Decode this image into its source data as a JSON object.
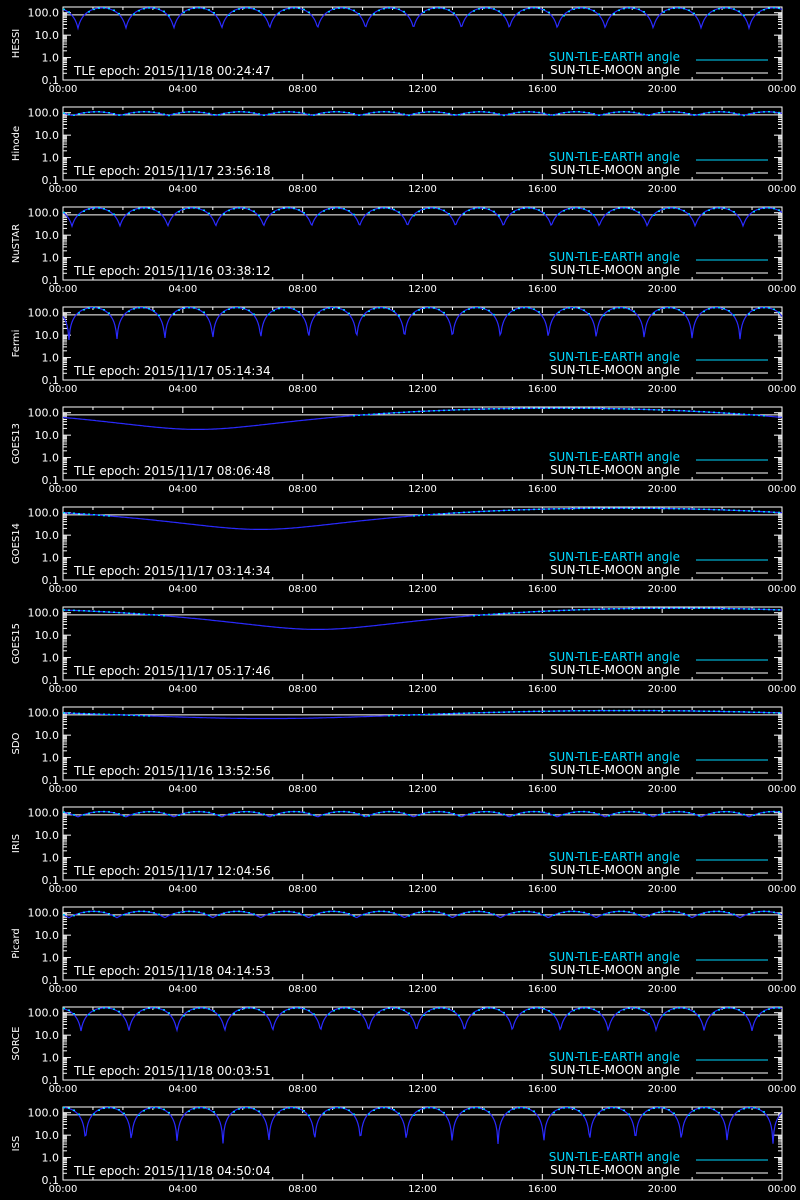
{
  "page": {
    "background": "#000000",
    "foreground": "#ffffff"
  },
  "colors": {
    "earth_angle": "#2a2aff",
    "earth_angle_marks": "#00d8ff",
    "legend_earth": "#00d8ff",
    "legend_moon": "#ffffff",
    "moon_angle_line": "#ffffff"
  },
  "shared": {
    "y_ticks": [
      "100.0",
      "10.0",
      "1.0",
      "0.1"
    ],
    "x_ticks": [
      "00:00",
      "04:00",
      "08:00",
      "12:00",
      "16:00",
      "20:00",
      "00:00"
    ],
    "legend": [
      "SUN-TLE-EARTH angle",
      "SUN-TLE-MOON angle"
    ],
    "epoch_prefix": "TLE epoch: "
  },
  "chart_data": [
    {
      "type": "line",
      "name": "HESSI",
      "epoch": "2015/11/18 00:24:47",
      "yscale": "log",
      "ylim": [
        0.1,
        180
      ],
      "xlim_hours": [
        0,
        24
      ],
      "moon_angle": 80,
      "series": [
        {
          "name": "SUN-TLE-EARTH angle",
          "model": "orbit",
          "period_hours": 1.6,
          "phase_hours": 0.5,
          "min_deg": 20,
          "max_deg": 165
        }
      ]
    },
    {
      "type": "line",
      "name": "Hinode",
      "epoch": "2015/11/17 23:56:18",
      "yscale": "log",
      "ylim": [
        0.1,
        180
      ],
      "xlim_hours": [
        0,
        24
      ],
      "moon_angle": 80,
      "series": [
        {
          "name": "SUN-TLE-EARTH angle",
          "model": "orbit",
          "period_hours": 1.6,
          "phase_hours": 0.3,
          "min_deg": 75,
          "max_deg": 110
        }
      ]
    },
    {
      "type": "line",
      "name": "NuSTAR",
      "epoch": "2015/11/16 03:38:12",
      "yscale": "log",
      "ylim": [
        0.1,
        180
      ],
      "xlim_hours": [
        0,
        24
      ],
      "moon_angle": 80,
      "series": [
        {
          "name": "SUN-TLE-EARTH angle",
          "model": "orbit",
          "period_hours": 1.6,
          "phase_hours": 0.3,
          "min_deg": 25,
          "max_deg": 165
        }
      ]
    },
    {
      "type": "line",
      "name": "Fermi",
      "epoch": "2015/11/17 05:14:34",
      "yscale": "log",
      "ylim": [
        0.1,
        180
      ],
      "xlim_hours": [
        0,
        24
      ],
      "moon_angle": 80,
      "series": [
        {
          "name": "SUN-TLE-EARTH angle",
          "model": "orbit",
          "period_hours": 1.6,
          "phase_hours": 0.2,
          "min_deg": 6,
          "max_deg": 170
        }
      ]
    },
    {
      "type": "line",
      "name": "GOES13",
      "epoch": "2015/11/17 08:06:48",
      "yscale": "log",
      "ylim": [
        0.1,
        180
      ],
      "xlim_hours": [
        0,
        24
      ],
      "moon_angle": 80,
      "series": [
        {
          "name": "SUN-TLE-EARTH angle",
          "model": "geo",
          "min_hour": 4.5,
          "min_deg": 18,
          "max_deg": 160
        }
      ]
    },
    {
      "type": "line",
      "name": "GOES14",
      "epoch": "2015/11/17 03:14:34",
      "yscale": "log",
      "ylim": [
        0.1,
        180
      ],
      "xlim_hours": [
        0,
        24
      ],
      "moon_angle": 80,
      "series": [
        {
          "name": "SUN-TLE-EARTH angle",
          "model": "geo",
          "min_hour": 6.6,
          "min_deg": 18,
          "max_deg": 160
        }
      ]
    },
    {
      "type": "line",
      "name": "GOES15",
      "epoch": "2015/11/17 05:17:46",
      "yscale": "log",
      "ylim": [
        0.1,
        180
      ],
      "xlim_hours": [
        0,
        24
      ],
      "moon_angle": 80,
      "series": [
        {
          "name": "SUN-TLE-EARTH angle",
          "model": "geo",
          "min_hour": 8.5,
          "min_deg": 18,
          "max_deg": 160
        }
      ]
    },
    {
      "type": "line",
      "name": "SDO",
      "epoch": "2015/11/16 13:52:56",
      "yscale": "log",
      "ylim": [
        0.1,
        180
      ],
      "xlim_hours": [
        0,
        24
      ],
      "moon_angle": 80,
      "series": [
        {
          "name": "SUN-TLE-EARTH angle",
          "model": "geo",
          "min_hour": 6.8,
          "min_deg": 55,
          "max_deg": 125
        }
      ]
    },
    {
      "type": "line",
      "name": "IRIS",
      "epoch": "2015/11/17 12:04:56",
      "yscale": "log",
      "ylim": [
        0.1,
        180
      ],
      "xlim_hours": [
        0,
        24
      ],
      "moon_angle": 80,
      "series": [
        {
          "name": "SUN-TLE-EARTH angle",
          "model": "orbit",
          "period_hours": 1.6,
          "phase_hours": 0.5,
          "min_deg": 65,
          "max_deg": 112
        }
      ]
    },
    {
      "type": "line",
      "name": "Picard",
      "epoch": "2015/11/18 04:14:53",
      "yscale": "log",
      "ylim": [
        0.1,
        180
      ],
      "xlim_hours": [
        0,
        24
      ],
      "moon_angle": 80,
      "series": [
        {
          "name": "SUN-TLE-EARTH angle",
          "model": "orbit",
          "period_hours": 1.6,
          "phase_hours": 0.2,
          "min_deg": 60,
          "max_deg": 115
        }
      ]
    },
    {
      "type": "line",
      "name": "SORCE",
      "epoch": "2015/11/18 00:03:51",
      "yscale": "log",
      "ylim": [
        0.1,
        180
      ],
      "xlim_hours": [
        0,
        24
      ],
      "moon_angle": 80,
      "series": [
        {
          "name": "SUN-TLE-EARTH angle",
          "model": "orbit",
          "period_hours": 1.6,
          "phase_hours": 0.6,
          "min_deg": 15,
          "max_deg": 165
        }
      ]
    },
    {
      "type": "line",
      "name": "ISS",
      "epoch": "2015/11/18 04:50:04",
      "yscale": "log",
      "ylim": [
        0.1,
        180
      ],
      "xlim_hours": [
        0,
        24
      ],
      "moon_angle": 80,
      "series": [
        {
          "name": "SUN-TLE-EARTH angle",
          "model": "orbit",
          "period_hours": 1.53,
          "phase_hours": 0.75,
          "min_deg": 4,
          "max_deg": 170
        }
      ]
    }
  ]
}
